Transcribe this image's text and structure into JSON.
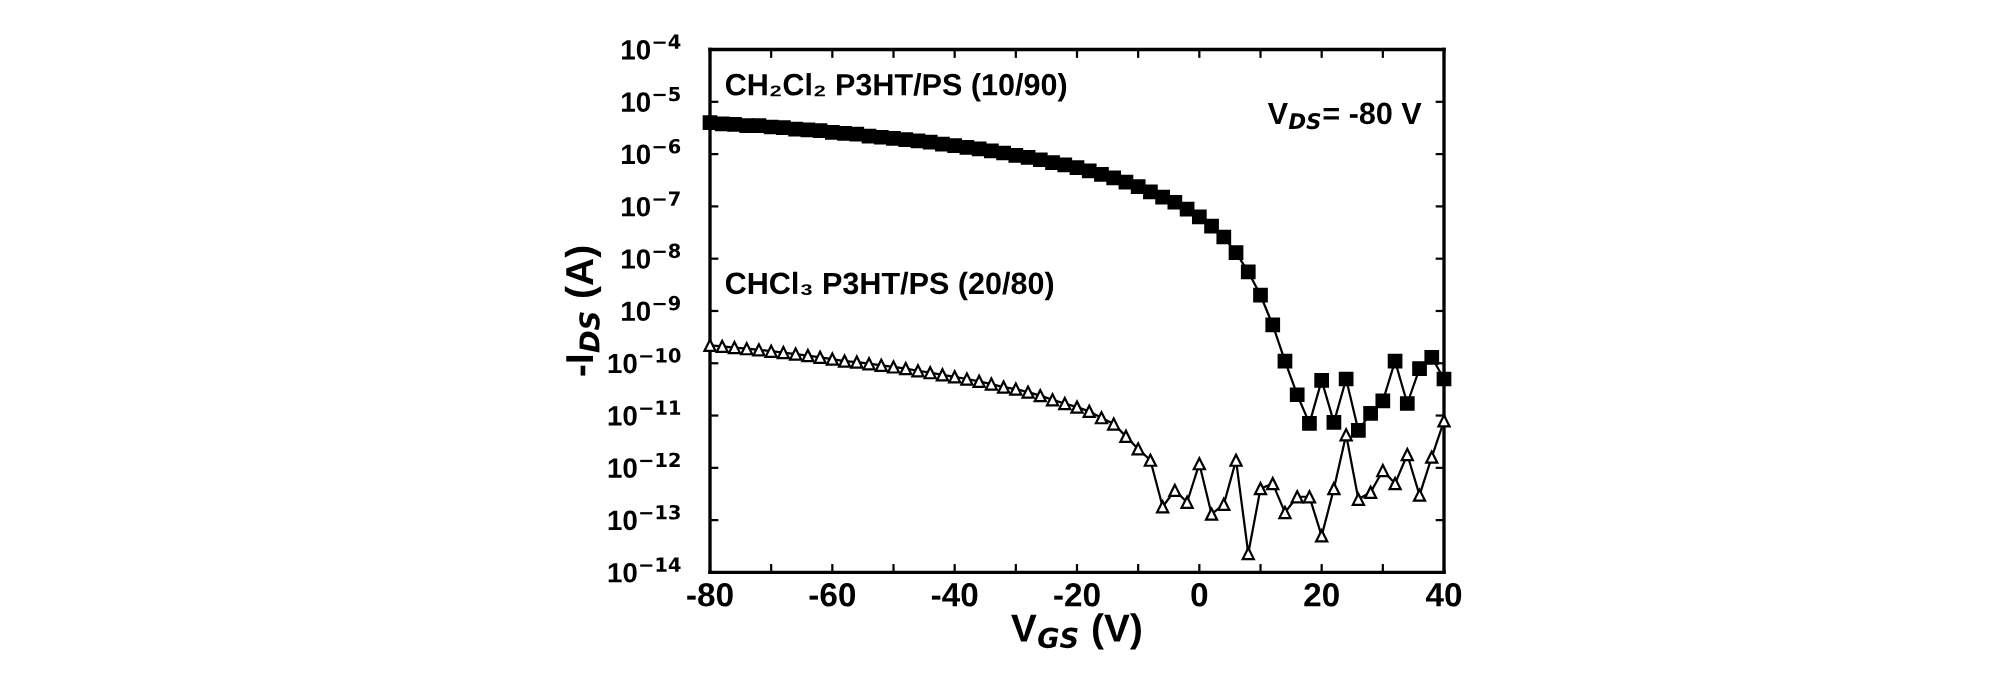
{
  "chart_data": {
    "type": "line",
    "xlabel": "V$_{GS}$ (V)",
    "ylabel": "-I$_{DS}$ (A)",
    "log": "y",
    "line_style": "solid",
    "grid": false,
    "legend": false,
    "xlim": [
      -80,
      40
    ],
    "ylim": [
      1e-14,
      0.0001
    ],
    "xticks": [
      -80,
      {
        "value": -70,
        "label": null
      },
      -60,
      {
        "value": -50,
        "label": null
      },
      -40,
      {
        "value": -30,
        "label": null
      },
      -20,
      {
        "value": -10,
        "label": null
      },
      0,
      {
        "value": 10,
        "label": null
      },
      20,
      {
        "value": 30,
        "label": null
      },
      40
    ],
    "yticks": [
      {
        "value": 1e-14,
        "label": "10$^{−14}$"
      },
      {
        "value": 1e-13,
        "label": "10$^{−13}$"
      },
      {
        "value": 1e-12,
        "label": "10$^{−12}$"
      },
      {
        "value": 1e-11,
        "label": "10$^{−11}$"
      },
      {
        "value": 1e-10,
        "label": "10$^{−10}$"
      },
      {
        "value": 1e-09,
        "label": "10$^{−9}$"
      },
      {
        "value": 1e-08,
        "label": "10$^{−8}$"
      },
      {
        "value": 1e-07,
        "label": "10$^{−7}$"
      },
      {
        "value": 1e-06,
        "label": "10$^{−6}$"
      },
      {
        "value": 1e-05,
        "label": "10$^{−5}$"
      },
      {
        "value": 0.0001,
        "label": "10$^{−4}$"
      }
    ],
    "x": [
      -80,
      -78,
      -76,
      -74,
      -72,
      -70,
      -68,
      -66,
      -64,
      -62,
      -60,
      -58,
      -56,
      -54,
      -52,
      -50,
      -48,
      -46,
      -44,
      -42,
      -40,
      -38,
      -36,
      -34,
      -32,
      -30,
      -28,
      -26,
      -24,
      -22,
      -20,
      -18,
      -16,
      -14,
      -12,
      -10,
      -8,
      -6,
      -4,
      -2,
      0,
      2,
      4,
      6,
      8,
      10,
      12,
      14,
      16,
      18,
      20,
      22,
      24,
      26,
      28,
      30,
      32,
      34,
      36,
      38,
      40
    ],
    "annotations": [
      "CH₂Cl₂ P3HT/PS (10/90)",
      "CHCl₃ P3HT/PS (20/80)",
      "V$_{DS}$= -80 V"
    ],
    "series": [
      {
        "color": "#000000",
        "marker": "square",
        "values": [
          4e-06,
          3.8e-06,
          3.7e-06,
          3.5e-06,
          3.5e-06,
          3.3e-06,
          3.2e-06,
          3e-06,
          2.9e-06,
          2.8e-06,
          2.6e-06,
          2.5e-06,
          2.4e-06,
          2.2e-06,
          2.1e-06,
          2e-06,
          1.9e-06,
          1.8e-06,
          1.7e-06,
          1.55e-06,
          1.45e-06,
          1.35e-06,
          1.26e-06,
          1.15e-06,
          1.05e-06,
          9.5e-07,
          8.7e-07,
          7.8e-07,
          6.9e-07,
          6.2e-07,
          5.5e-07,
          4.8e-07,
          4.1e-07,
          3.5e-07,
          2.9e-07,
          2.4e-07,
          1.9e-07,
          1.5e-07,
          1.2e-07,
          8.9e-08,
          6.3e-08,
          4.2e-08,
          2.6e-08,
          1.3e-08,
          5.6e-09,
          2e-09,
          5.4e-10,
          1.1e-10,
          2.5e-11,
          7.1e-12,
          4.7e-11,
          7.4e-12,
          5e-11,
          5.2e-12,
          1.1e-11,
          1.9e-11,
          1.1e-10,
          1.7e-11,
          7.9e-11,
          1.3e-10,
          5e-11
        ]
      },
      {
        "color": "#000000",
        "marker": "triangle",
        "values": [
          2.2e-10,
          2.1e-10,
          2e-10,
          1.9e-10,
          1.8e-10,
          1.7e-10,
          1.6e-10,
          1.5e-10,
          1.4e-10,
          1.3e-10,
          1.2e-10,
          1.1e-10,
          1.05e-10,
          9.8e-11,
          9.1e-11,
          8.5e-11,
          7.9e-11,
          7.2e-11,
          6.6e-11,
          6e-11,
          5.5e-11,
          5e-11,
          4.5e-11,
          4e-11,
          3.5e-11,
          3.2e-11,
          2.8e-11,
          2.4e-11,
          2e-11,
          1.7e-11,
          1.45e-11,
          1.2e-11,
          9.1e-12,
          6.9e-12,
          4e-12,
          2.3e-12,
          1.4e-12,
          1.8e-13,
          3.7e-13,
          2.2e-13,
          1.2e-12,
          1.3e-13,
          2e-13,
          1.4e-12,
          2.3e-14,
          4e-13,
          5e-13,
          1.4e-13,
          2.8e-13,
          2.8e-13,
          5e-14,
          4e-13,
          4.3e-12,
          2.5e-13,
          3.4e-13,
          8.9e-13,
          5e-13,
          1.8e-12,
          3e-13,
          1.6e-12,
          7.9e-12
        ]
      }
    ]
  }
}
